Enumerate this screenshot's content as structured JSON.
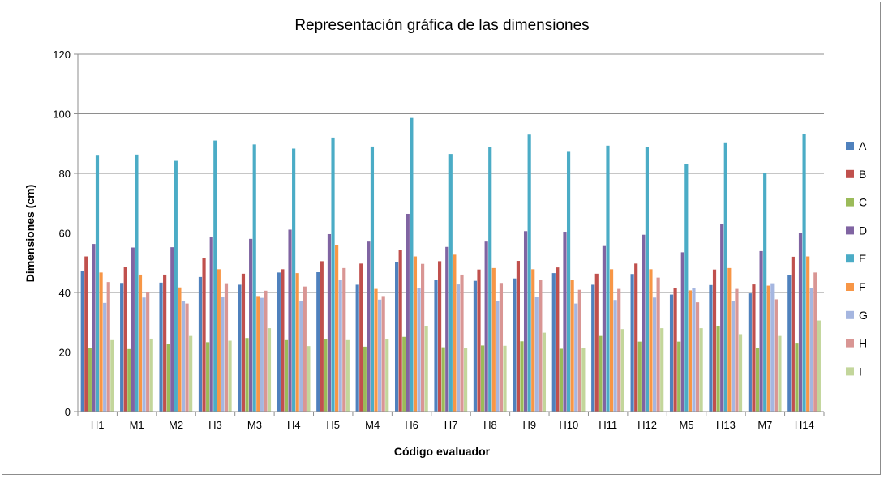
{
  "chart_data": {
    "type": "bar",
    "title": "Representación gráfica de las dimensiones",
    "xlabel": "Código evaluador",
    "ylabel": "Dimensiones (cm)",
    "ylim": [
      0,
      120
    ],
    "yticks": [
      0,
      20,
      40,
      60,
      80,
      100,
      120
    ],
    "grid": true,
    "legend_position": "right",
    "categories": [
      "H1",
      "M1",
      "M2",
      "H3",
      "M3",
      "H4",
      "H5",
      "M4",
      "H6",
      "H7",
      "H8",
      "H9",
      "H10",
      "H11",
      "H12",
      "M5",
      "H13",
      "M7",
      "H14"
    ],
    "series": [
      {
        "name": "A",
        "color": "#4f81bd",
        "values": [
          47.2,
          43.2,
          43.3,
          45.2,
          42.6,
          46.7,
          46.8,
          42.6,
          50.2,
          44.2,
          43.9,
          44.7,
          46.5,
          42.6,
          46.2,
          39.3,
          42.5,
          39.7,
          45.8
        ]
      },
      {
        "name": "B",
        "color": "#c0504d",
        "values": [
          52.1,
          48.7,
          46.0,
          51.7,
          46.3,
          47.8,
          50.5,
          49.7,
          54.4,
          50.5,
          47.7,
          50.6,
          48.4,
          46.3,
          49.7,
          41.6,
          47.7,
          42.7,
          52.0
        ]
      },
      {
        "name": "C",
        "color": "#9bbb59",
        "values": [
          21.3,
          21.0,
          22.8,
          23.3,
          24.7,
          24.0,
          24.3,
          21.8,
          25.1,
          21.6,
          22.2,
          23.6,
          21.1,
          25.4,
          23.5,
          23.5,
          28.6,
          21.3,
          23.1
        ]
      },
      {
        "name": "D",
        "color": "#8064a2",
        "values": [
          56.3,
          55.1,
          55.2,
          58.6,
          58.0,
          61.1,
          59.6,
          57.1,
          66.4,
          55.3,
          57.1,
          60.6,
          60.4,
          55.6,
          59.4,
          53.5,
          62.9,
          53.9,
          60.0
        ]
      },
      {
        "name": "E",
        "color": "#4bacc6",
        "values": [
          86.2,
          86.3,
          84.2,
          91.0,
          89.7,
          88.3,
          92.0,
          89.0,
          98.6,
          86.5,
          88.8,
          93.0,
          87.5,
          89.3,
          88.8,
          83.0,
          90.4,
          80.0,
          93.1
        ]
      },
      {
        "name": "F",
        "color": "#f79646",
        "values": [
          46.7,
          46.0,
          41.7,
          47.8,
          38.8,
          46.5,
          56.0,
          41.2,
          52.1,
          52.7,
          48.2,
          47.8,
          44.2,
          47.8,
          47.8,
          40.7,
          48.2,
          42.3,
          52.1
        ]
      },
      {
        "name": "G",
        "color": "#a5b6e0",
        "values": [
          36.5,
          38.3,
          37.0,
          38.6,
          38.2,
          37.2,
          44.2,
          37.6,
          41.4,
          42.7,
          37.1,
          38.5,
          36.3,
          37.5,
          38.3,
          41.4,
          37.2,
          43.1,
          41.6
        ]
      },
      {
        "name": "H",
        "color": "#d99694",
        "values": [
          43.5,
          40.2,
          36.3,
          43.1,
          40.6,
          42.0,
          48.2,
          38.8,
          49.6,
          46.0,
          43.2,
          44.3,
          40.9,
          41.2,
          45.0,
          36.7,
          41.2,
          37.7,
          46.7
        ]
      },
      {
        "name": "I",
        "color": "#c3d69b",
        "values": [
          24.0,
          24.5,
          25.4,
          23.8,
          28.0,
          22.0,
          24.0,
          24.3,
          28.7,
          21.3,
          22.1,
          26.5,
          21.5,
          27.7,
          28.0,
          28.0,
          26.0,
          25.4,
          30.6
        ]
      }
    ]
  }
}
